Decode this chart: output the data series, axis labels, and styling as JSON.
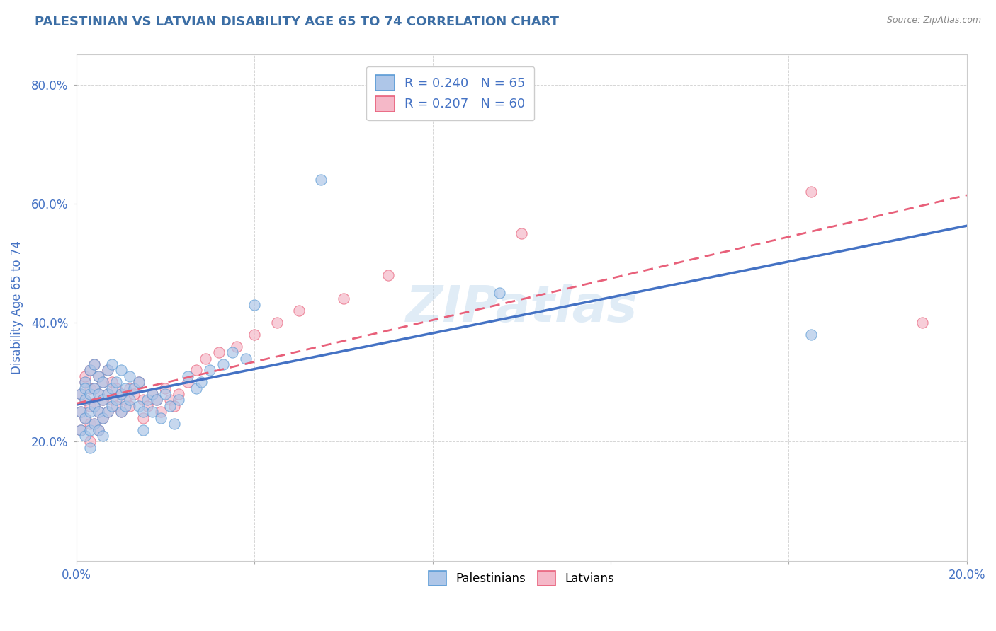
{
  "title": "PALESTINIAN VS LATVIAN DISABILITY AGE 65 TO 74 CORRELATION CHART",
  "source_text": "Source: ZipAtlas.com",
  "ylabel": "Disability Age 65 to 74",
  "xlim": [
    0.0,
    0.2
  ],
  "ylim": [
    0.0,
    0.85
  ],
  "xticks": [
    0.0,
    0.04,
    0.08,
    0.12,
    0.16,
    0.2
  ],
  "xticklabels": [
    "0.0%",
    "",
    "",
    "",
    "",
    "20.0%"
  ],
  "yticks": [
    0.2,
    0.4,
    0.6,
    0.8
  ],
  "yticklabels": [
    "20.0%",
    "40.0%",
    "60.0%",
    "80.0%"
  ],
  "palestinian_color": "#aec6e8",
  "latvian_color": "#f5b8c8",
  "palestinian_edge_color": "#5b9bd5",
  "latvian_edge_color": "#e8607a",
  "palestinian_line_color": "#4472c4",
  "latvian_line_color": "#e8607a",
  "R_palestinian": 0.24,
  "N_palestinian": 65,
  "R_latvian": 0.207,
  "N_latvian": 60,
  "legend_label_1": "Palestinians",
  "legend_label_2": "Latvians",
  "background_color": "#ffffff",
  "grid_color": "#cccccc",
  "title_color": "#3c6ea5",
  "axis_label_color": "#4472c4",
  "palestinian_x": [
    0.001,
    0.001,
    0.001,
    0.002,
    0.002,
    0.002,
    0.002,
    0.002,
    0.003,
    0.003,
    0.003,
    0.003,
    0.003,
    0.004,
    0.004,
    0.004,
    0.004,
    0.005,
    0.005,
    0.005,
    0.005,
    0.006,
    0.006,
    0.006,
    0.006,
    0.007,
    0.007,
    0.007,
    0.008,
    0.008,
    0.008,
    0.009,
    0.009,
    0.01,
    0.01,
    0.01,
    0.011,
    0.011,
    0.012,
    0.012,
    0.013,
    0.014,
    0.014,
    0.015,
    0.015,
    0.016,
    0.017,
    0.017,
    0.018,
    0.019,
    0.02,
    0.021,
    0.022,
    0.023,
    0.025,
    0.027,
    0.028,
    0.03,
    0.033,
    0.035,
    0.038,
    0.04,
    0.095,
    0.165,
    0.055
  ],
  "palestinian_y": [
    0.28,
    0.25,
    0.22,
    0.3,
    0.27,
    0.24,
    0.21,
    0.29,
    0.32,
    0.28,
    0.25,
    0.22,
    0.19,
    0.33,
    0.29,
    0.26,
    0.23,
    0.31,
    0.28,
    0.25,
    0.22,
    0.3,
    0.27,
    0.24,
    0.21,
    0.32,
    0.28,
    0.25,
    0.33,
    0.29,
    0.26,
    0.3,
    0.27,
    0.32,
    0.28,
    0.25,
    0.29,
    0.26,
    0.31,
    0.27,
    0.29,
    0.3,
    0.26,
    0.25,
    0.22,
    0.27,
    0.28,
    0.25,
    0.27,
    0.24,
    0.28,
    0.26,
    0.23,
    0.27,
    0.31,
    0.29,
    0.3,
    0.32,
    0.33,
    0.35,
    0.34,
    0.43,
    0.45,
    0.38,
    0.64
  ],
  "latvian_x": [
    0.001,
    0.001,
    0.001,
    0.002,
    0.002,
    0.002,
    0.002,
    0.003,
    0.003,
    0.003,
    0.003,
    0.003,
    0.004,
    0.004,
    0.004,
    0.004,
    0.005,
    0.005,
    0.005,
    0.005,
    0.006,
    0.006,
    0.006,
    0.007,
    0.007,
    0.007,
    0.008,
    0.008,
    0.009,
    0.009,
    0.01,
    0.01,
    0.011,
    0.012,
    0.012,
    0.013,
    0.014,
    0.015,
    0.015,
    0.016,
    0.017,
    0.018,
    0.019,
    0.02,
    0.021,
    0.022,
    0.023,
    0.025,
    0.027,
    0.029,
    0.032,
    0.036,
    0.04,
    0.045,
    0.05,
    0.06,
    0.07,
    0.1,
    0.165,
    0.19
  ],
  "latvian_y": [
    0.28,
    0.25,
    0.22,
    0.3,
    0.27,
    0.24,
    0.31,
    0.32,
    0.29,
    0.26,
    0.23,
    0.2,
    0.33,
    0.29,
    0.26,
    0.23,
    0.31,
    0.28,
    0.25,
    0.22,
    0.3,
    0.27,
    0.24,
    0.32,
    0.28,
    0.25,
    0.3,
    0.27,
    0.29,
    0.26,
    0.28,
    0.25,
    0.27,
    0.29,
    0.26,
    0.28,
    0.3,
    0.27,
    0.24,
    0.26,
    0.28,
    0.27,
    0.25,
    0.29,
    0.27,
    0.26,
    0.28,
    0.3,
    0.32,
    0.34,
    0.35,
    0.36,
    0.38,
    0.4,
    0.42,
    0.44,
    0.48,
    0.55,
    0.62,
    0.4
  ]
}
